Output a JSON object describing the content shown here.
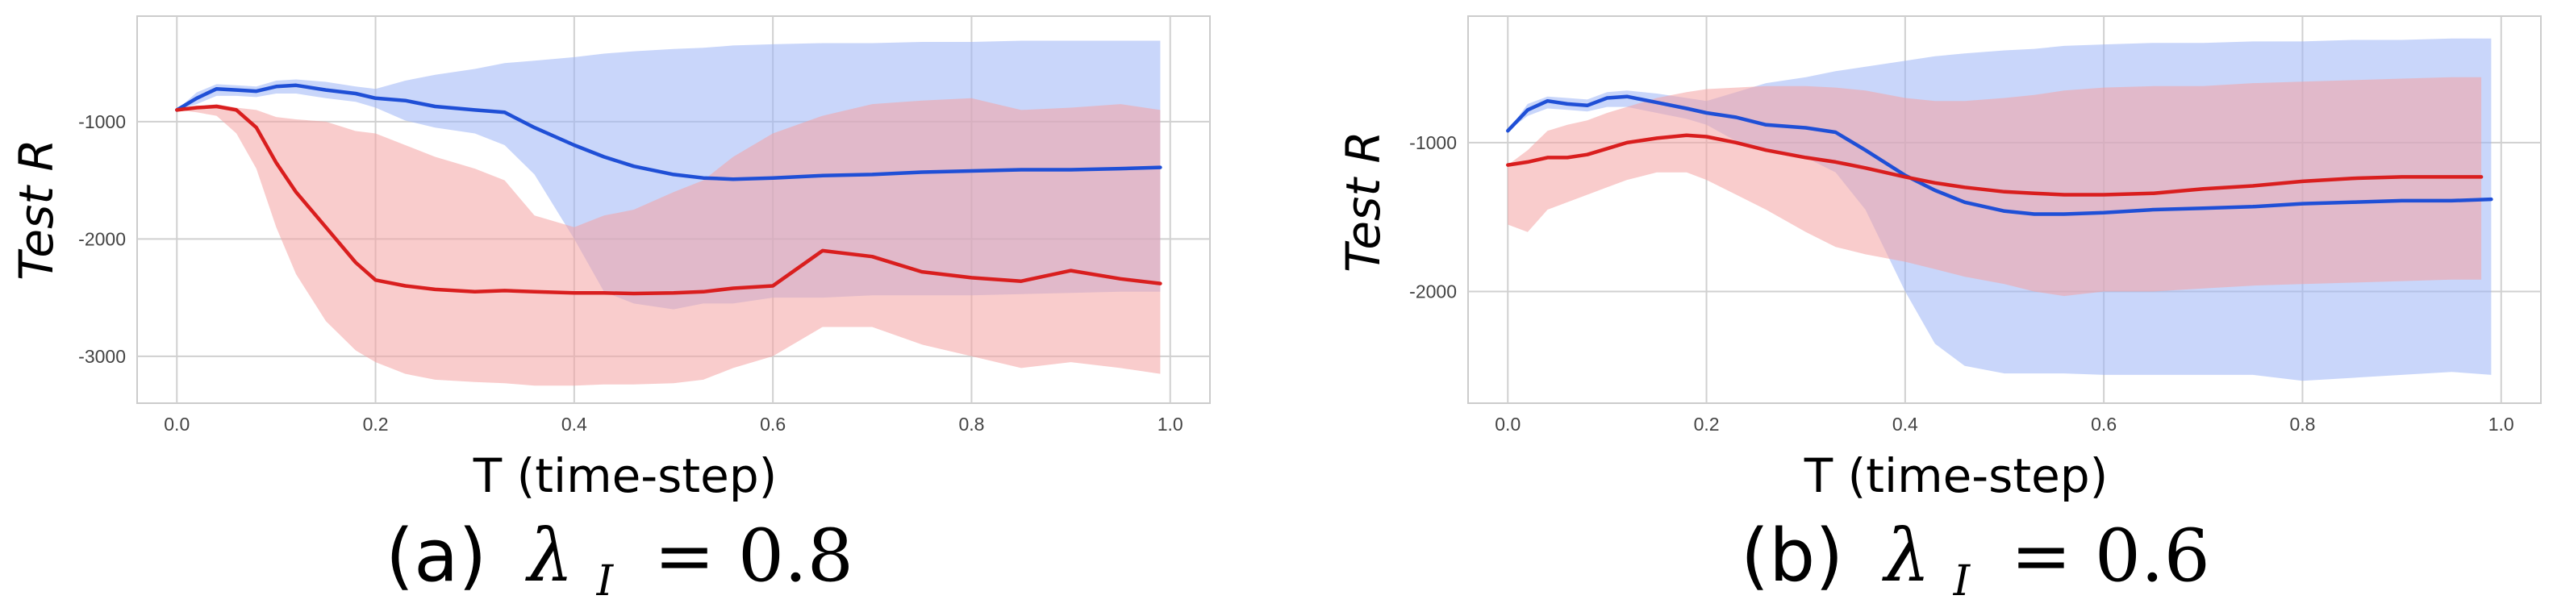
{
  "chart_data": [
    {
      "type": "line",
      "panel_label": "(a)",
      "caption_lambda": "λ",
      "caption_sub": "I",
      "caption_value": "= 0.8",
      "xlabel": "T (time-step)",
      "ylabel": "Test R",
      "xlim": [
        -0.04,
        1.04
      ],
      "ylim": [
        -3400,
        -100
      ],
      "xticks": [
        "0.0",
        "0.2",
        "0.4",
        "0.6",
        "0.8",
        "1.0"
      ],
      "yticks": [
        "-1000",
        "-2000",
        "-3000"
      ],
      "grid": true,
      "series": [
        {
          "color": "#1f4fd6",
          "band_color": "#9db4f5",
          "x": [
            0.0,
            0.02,
            0.04,
            0.06,
            0.08,
            0.1,
            0.12,
            0.15,
            0.18,
            0.2,
            0.23,
            0.26,
            0.3,
            0.33,
            0.36,
            0.4,
            0.43,
            0.46,
            0.5,
            0.53,
            0.56,
            0.6,
            0.65,
            0.7,
            0.75,
            0.8,
            0.85,
            0.9,
            0.95,
            0.99
          ],
          "mean": [
            -900,
            -800,
            -720,
            -730,
            -740,
            -700,
            -690,
            -730,
            -760,
            -800,
            -820,
            -870,
            -900,
            -920,
            -1050,
            -1200,
            -1300,
            -1380,
            -1450,
            -1480,
            -1490,
            -1480,
            -1460,
            -1450,
            -1430,
            -1420,
            -1410,
            -1410,
            -1400,
            -1390
          ],
          "upper": [
            -900,
            -750,
            -680,
            -690,
            -700,
            -650,
            -640,
            -660,
            -700,
            -720,
            -650,
            -600,
            -550,
            -500,
            -480,
            -450,
            -420,
            -400,
            -380,
            -370,
            -350,
            -340,
            -330,
            -330,
            -320,
            -320,
            -310,
            -310,
            -310,
            -310
          ],
          "lower": [
            -900,
            -850,
            -780,
            -780,
            -790,
            -760,
            -760,
            -800,
            -830,
            -880,
            -990,
            -1050,
            -1100,
            -1200,
            -1450,
            -2000,
            -2450,
            -2550,
            -2600,
            -2550,
            -2550,
            -2500,
            -2500,
            -2480,
            -2480,
            -2480,
            -2470,
            -2460,
            -2450,
            -2450
          ]
        },
        {
          "color": "#d91e1e",
          "band_color": "#f4a3a3",
          "x": [
            0.0,
            0.02,
            0.04,
            0.06,
            0.08,
            0.1,
            0.12,
            0.15,
            0.18,
            0.2,
            0.23,
            0.26,
            0.3,
            0.33,
            0.36,
            0.4,
            0.43,
            0.46,
            0.5,
            0.53,
            0.56,
            0.6,
            0.65,
            0.7,
            0.75,
            0.8,
            0.85,
            0.9,
            0.95,
            0.99
          ],
          "mean": [
            -900,
            -880,
            -870,
            -900,
            -1050,
            -1350,
            -1600,
            -1900,
            -2200,
            -2350,
            -2400,
            -2430,
            -2450,
            -2440,
            -2450,
            -2460,
            -2460,
            -2465,
            -2460,
            -2450,
            -2420,
            -2400,
            -2100,
            -2150,
            -2280,
            -2330,
            -2360,
            -2270,
            -2340,
            -2380
          ],
          "upper": [
            -900,
            -870,
            -850,
            -880,
            -900,
            -960,
            -980,
            -1000,
            -1080,
            -1100,
            -1200,
            -1300,
            -1400,
            -1500,
            -1800,
            -1900,
            -1800,
            -1750,
            -1600,
            -1500,
            -1300,
            -1100,
            -950,
            -850,
            -820,
            -800,
            -900,
            -880,
            -850,
            -900
          ],
          "lower": [
            -900,
            -920,
            -950,
            -1100,
            -1400,
            -1900,
            -2300,
            -2700,
            -2950,
            -3050,
            -3150,
            -3200,
            -3220,
            -3230,
            -3250,
            -3250,
            -3240,
            -3240,
            -3230,
            -3200,
            -3100,
            -3000,
            -2750,
            -2750,
            -2900,
            -3000,
            -3100,
            -3050,
            -3100,
            -3150
          ]
        }
      ]
    },
    {
      "type": "line",
      "panel_label": "(b)",
      "caption_lambda": "λ",
      "caption_sub": "I",
      "caption_value": "= 0.6",
      "xlabel": "T (time-step)",
      "ylabel": "Test R",
      "xlim": [
        -0.04,
        1.04
      ],
      "ylim": [
        -2750,
        -150
      ],
      "xticks": [
        "0.0",
        "0.2",
        "0.4",
        "0.6",
        "0.8",
        "1.0"
      ],
      "yticks": [
        "-1000",
        "-2000"
      ],
      "grid": true,
      "series": [
        {
          "color": "#1f4fd6",
          "band_color": "#9db4f5",
          "x": [
            0.0,
            0.02,
            0.04,
            0.06,
            0.08,
            0.1,
            0.12,
            0.15,
            0.18,
            0.2,
            0.23,
            0.26,
            0.3,
            0.33,
            0.36,
            0.4,
            0.43,
            0.46,
            0.5,
            0.53,
            0.56,
            0.6,
            0.65,
            0.7,
            0.75,
            0.8,
            0.85,
            0.9,
            0.95,
            0.99
          ],
          "mean": [
            -920,
            -780,
            -720,
            -740,
            -750,
            -700,
            -690,
            -730,
            -770,
            -800,
            -830,
            -880,
            -900,
            -930,
            -1050,
            -1220,
            -1320,
            -1400,
            -1460,
            -1480,
            -1480,
            -1470,
            -1450,
            -1440,
            -1430,
            -1410,
            -1400,
            -1390,
            -1390,
            -1380
          ],
          "upper": [
            -920,
            -740,
            -690,
            -700,
            -710,
            -660,
            -650,
            -670,
            -700,
            -720,
            -660,
            -600,
            -560,
            -520,
            -490,
            -450,
            -420,
            -400,
            -380,
            -370,
            -350,
            -340,
            -330,
            -330,
            -320,
            -320,
            -310,
            -310,
            -300,
            -300
          ],
          "lower": [
            -920,
            -820,
            -770,
            -780,
            -790,
            -760,
            -760,
            -800,
            -840,
            -880,
            -990,
            -1050,
            -1100,
            -1200,
            -1450,
            -2000,
            -2350,
            -2500,
            -2550,
            -2550,
            -2550,
            -2560,
            -2560,
            -2560,
            -2560,
            -2600,
            -2580,
            -2560,
            -2540,
            -2560
          ]
        },
        {
          "color": "#d91e1e",
          "band_color": "#f4a3a3",
          "x": [
            0.0,
            0.02,
            0.04,
            0.06,
            0.08,
            0.1,
            0.12,
            0.15,
            0.18,
            0.2,
            0.23,
            0.26,
            0.3,
            0.33,
            0.36,
            0.4,
            0.43,
            0.46,
            0.5,
            0.53,
            0.56,
            0.6,
            0.65,
            0.7,
            0.75,
            0.8,
            0.85,
            0.9,
            0.95,
            0.98
          ],
          "mean": [
            -1150,
            -1130,
            -1100,
            -1100,
            -1080,
            -1040,
            -1000,
            -970,
            -950,
            -960,
            -1000,
            -1050,
            -1100,
            -1130,
            -1170,
            -1230,
            -1270,
            -1300,
            -1330,
            -1340,
            -1350,
            -1350,
            -1340,
            -1310,
            -1290,
            -1260,
            -1240,
            -1230,
            -1230,
            -1230
          ],
          "upper": [
            -1150,
            -1050,
            -920,
            -880,
            -850,
            -800,
            -760,
            -700,
            -660,
            -640,
            -630,
            -620,
            -620,
            -630,
            -650,
            -700,
            -720,
            -720,
            -700,
            -680,
            -650,
            -630,
            -620,
            -620,
            -600,
            -590,
            -580,
            -570,
            -560,
            -560
          ],
          "lower": [
            -1550,
            -1600,
            -1450,
            -1400,
            -1350,
            -1300,
            -1250,
            -1200,
            -1200,
            -1250,
            -1350,
            -1450,
            -1600,
            -1700,
            -1750,
            -1800,
            -1850,
            -1900,
            -1950,
            -2000,
            -2030,
            -2000,
            -2000,
            -1980,
            -1960,
            -1950,
            -1940,
            -1930,
            -1920,
            -1920
          ]
        }
      ]
    }
  ]
}
